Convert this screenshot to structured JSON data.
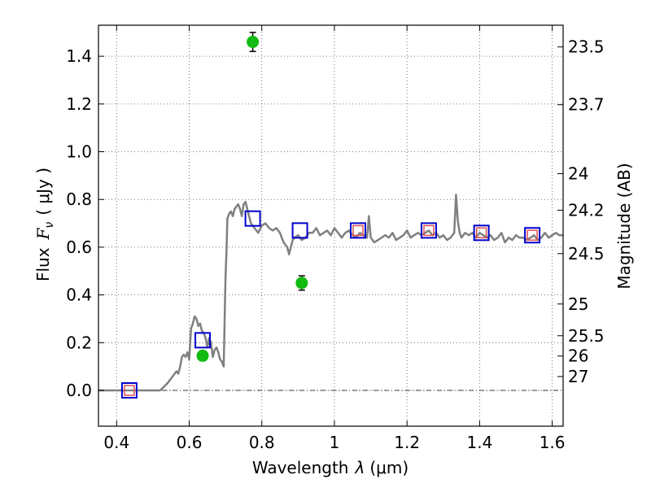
{
  "chart_data": {
    "type": "line",
    "title": "",
    "xlabel_prefix": "Wavelength",
    "xlabel_symbol": "λ",
    "xlabel_unit": "(μm)",
    "ylabel_prefix": "Flux",
    "ylabel_symbol": "F",
    "ylabel_subscript": "ν",
    "ylabel_unit": "( μJy )",
    "ylabel_right": "Magnitude (AB)",
    "xlim": [
      0.35,
      1.63
    ],
    "ylim": [
      -0.15,
      1.53
    ],
    "grid": true,
    "xticks": [
      {
        "v": 0.4,
        "label": "0.4"
      },
      {
        "v": 0.6,
        "label": "0.6"
      },
      {
        "v": 0.8,
        "label": "0.8"
      },
      {
        "v": 1.0,
        "label": "1"
      },
      {
        "v": 1.2,
        "label": "1.2"
      },
      {
        "v": 1.4,
        "label": "1.4"
      },
      {
        "v": 1.6,
        "label": "1.6"
      }
    ],
    "yticks": [
      {
        "v": 0.0,
        "label": "0.0"
      },
      {
        "v": 0.2,
        "label": "0.2"
      },
      {
        "v": 0.4,
        "label": "0.4"
      },
      {
        "v": 0.6,
        "label": "0.6"
      },
      {
        "v": 0.8,
        "label": "0.8"
      },
      {
        "v": 1.0,
        "label": "1.0"
      },
      {
        "v": 1.2,
        "label": "1.2"
      },
      {
        "v": 1.4,
        "label": "1.4"
      }
    ],
    "right_ticks": [
      {
        "label": "23.5",
        "flux": 1.439
      },
      {
        "label": "23.7",
        "flux": 1.197
      },
      {
        "label": "24",
        "flux": 0.908
      },
      {
        "label": "24.2",
        "flux": 0.755
      },
      {
        "label": "24.5",
        "flux": 0.573
      },
      {
        "label": "25",
        "flux": 0.362
      },
      {
        "label": "25.5",
        "flux": 0.229
      },
      {
        "label": "26",
        "flux": 0.144
      },
      {
        "label": "27",
        "flux": 0.058
      }
    ],
    "series": [
      {
        "kind": "line",
        "color": "#808080",
        "x": [
          0.35,
          0.4,
          0.45,
          0.5,
          0.52,
          0.54,
          0.555,
          0.565,
          0.57,
          0.575,
          0.58,
          0.585,
          0.59,
          0.595,
          0.6,
          0.605,
          0.61,
          0.615,
          0.62,
          0.625,
          0.63,
          0.635,
          0.64,
          0.645,
          0.65,
          0.655,
          0.66,
          0.665,
          0.67,
          0.675,
          0.68,
          0.685,
          0.69,
          0.695,
          0.7,
          0.703,
          0.705,
          0.71,
          0.715,
          0.72,
          0.725,
          0.73,
          0.735,
          0.74,
          0.745,
          0.75,
          0.755,
          0.76,
          0.765,
          0.77,
          0.78,
          0.79,
          0.8,
          0.81,
          0.82,
          0.83,
          0.84,
          0.85,
          0.86,
          0.87,
          0.875,
          0.88,
          0.885,
          0.89,
          0.9,
          0.91,
          0.92,
          0.93,
          0.94,
          0.95,
          0.96,
          0.97,
          0.98,
          0.99,
          1.0,
          1.01,
          1.02,
          1.03,
          1.04,
          1.05,
          1.06,
          1.07,
          1.08,
          1.09,
          1.095,
          1.1,
          1.11,
          1.12,
          1.13,
          1.14,
          1.15,
          1.16,
          1.17,
          1.18,
          1.19,
          1.2,
          1.21,
          1.22,
          1.23,
          1.24,
          1.25,
          1.26,
          1.27,
          1.28,
          1.29,
          1.3,
          1.31,
          1.32,
          1.33,
          1.335,
          1.34,
          1.345,
          1.35,
          1.36,
          1.37,
          1.38,
          1.39,
          1.4,
          1.41,
          1.42,
          1.43,
          1.44,
          1.45,
          1.46,
          1.47,
          1.48,
          1.49,
          1.5,
          1.51,
          1.52,
          1.53,
          1.54,
          1.55,
          1.56,
          1.57,
          1.58,
          1.59,
          1.6,
          1.61,
          1.62,
          1.63
        ],
        "y": [
          0.0,
          0.0,
          0.0,
          0.0,
          0.0,
          0.03,
          0.06,
          0.08,
          0.07,
          0.1,
          0.14,
          0.15,
          0.14,
          0.16,
          0.13,
          0.26,
          0.28,
          0.31,
          0.3,
          0.27,
          0.28,
          0.25,
          0.24,
          0.22,
          0.18,
          0.22,
          0.2,
          0.14,
          0.17,
          0.18,
          0.16,
          0.13,
          0.12,
          0.1,
          0.47,
          0.6,
          0.72,
          0.74,
          0.75,
          0.73,
          0.76,
          0.77,
          0.78,
          0.76,
          0.73,
          0.78,
          0.79,
          0.76,
          0.73,
          0.7,
          0.68,
          0.66,
          0.69,
          0.7,
          0.68,
          0.67,
          0.68,
          0.66,
          0.62,
          0.6,
          0.57,
          0.6,
          0.63,
          0.64,
          0.65,
          0.63,
          0.64,
          0.66,
          0.66,
          0.68,
          0.65,
          0.66,
          0.67,
          0.65,
          0.68,
          0.66,
          0.64,
          0.66,
          0.67,
          0.65,
          0.64,
          0.66,
          0.65,
          0.64,
          0.73,
          0.64,
          0.62,
          0.63,
          0.64,
          0.65,
          0.64,
          0.66,
          0.63,
          0.64,
          0.65,
          0.67,
          0.64,
          0.65,
          0.66,
          0.65,
          0.66,
          0.67,
          0.65,
          0.66,
          0.64,
          0.65,
          0.63,
          0.64,
          0.66,
          0.82,
          0.71,
          0.66,
          0.64,
          0.66,
          0.65,
          0.66,
          0.64,
          0.66,
          0.65,
          0.64,
          0.65,
          0.63,
          0.64,
          0.66,
          0.62,
          0.64,
          0.63,
          0.65,
          0.64,
          0.64,
          0.63,
          0.64,
          0.65,
          0.63,
          0.64,
          0.66,
          0.64,
          0.65,
          0.66,
          0.65,
          0.65
        ]
      },
      {
        "kind": "squares",
        "color": "#0000cc",
        "x": [
          0.435,
          0.637,
          0.775,
          0.905,
          1.065,
          1.26,
          1.405,
          1.545
        ],
        "y": [
          0.0,
          0.21,
          0.72,
          0.67,
          0.67,
          0.67,
          0.66,
          0.65
        ]
      },
      {
        "kind": "squares-small",
        "color": "#e05050",
        "x": [
          0.435,
          1.065,
          1.26,
          1.405,
          1.545
        ],
        "y": [
          0.0,
          0.67,
          0.67,
          0.66,
          0.65
        ]
      },
      {
        "kind": "points",
        "color": "#11bb11",
        "x": [
          0.637,
          0.775,
          0.91
        ],
        "y": [
          0.145,
          1.46,
          0.45
        ],
        "err": [
          0.02,
          0.04,
          0.03
        ]
      }
    ]
  }
}
